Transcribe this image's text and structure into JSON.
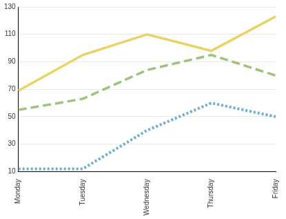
{
  "chart_data": {
    "type": "line",
    "categories": [
      "Monday",
      "Tuesday",
      "Wednesday",
      "Thursday",
      "Friday"
    ],
    "series": [
      {
        "color": "#e8d466",
        "line_style": "solid",
        "values": [
          69,
          95,
          110,
          98,
          123
        ]
      },
      {
        "color": "#9dc47a",
        "line_style": "dashed",
        "values": [
          55,
          63,
          84,
          95,
          80
        ]
      },
      {
        "color": "#6aaed0",
        "line_style": "dotted",
        "values": [
          12,
          12,
          40,
          60,
          50
        ]
      }
    ],
    "ylim": [
      10,
      130
    ],
    "yticks": [
      10,
      30,
      50,
      70,
      90,
      110,
      130
    ],
    "grid": true
  }
}
